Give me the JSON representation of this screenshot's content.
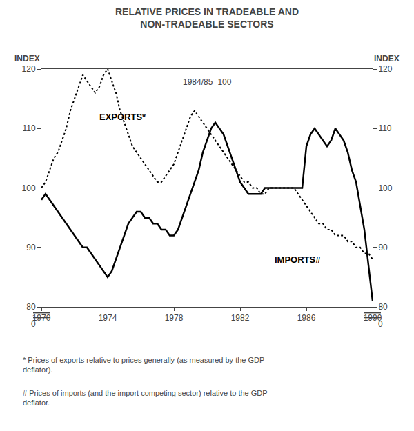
{
  "chart_data": {
    "type": "line",
    "title": "RELATIVE PRICES IN TRADEABLE AND\nNON-TRADEABLE SECTORS",
    "subtitle": "1984/85=100",
    "ylabel": "INDEX",
    "y2label": "INDEX",
    "x": [
      1970.0,
      1970.25,
      1970.5,
      1970.75,
      1971.0,
      1971.25,
      1971.5,
      1971.75,
      1972.0,
      1972.25,
      1972.5,
      1972.75,
      1973.0,
      1973.25,
      1973.5,
      1973.75,
      1974.0,
      1974.25,
      1974.5,
      1974.75,
      1975.0,
      1975.25,
      1975.5,
      1975.75,
      1976.0,
      1976.25,
      1976.5,
      1976.75,
      1977.0,
      1977.25,
      1977.5,
      1977.75,
      1978.0,
      1978.25,
      1978.5,
      1978.75,
      1979.0,
      1979.25,
      1979.5,
      1979.75,
      1980.0,
      1980.25,
      1980.5,
      1980.75,
      1981.0,
      1981.25,
      1981.5,
      1981.75,
      1982.0,
      1982.25,
      1982.5,
      1982.75,
      1983.0,
      1983.25,
      1983.5,
      1983.75,
      1984.0,
      1984.25,
      1984.5,
      1984.75,
      1985.0,
      1985.25,
      1985.5,
      1985.75,
      1986.0,
      1986.25,
      1986.5,
      1986.75,
      1987.0,
      1987.25,
      1987.5,
      1987.75,
      1988.0,
      1988.25,
      1988.5,
      1988.75,
      1989.0,
      1989.25,
      1989.5,
      1989.75,
      1990.0
    ],
    "series": [
      {
        "name": "EXPORTS*",
        "color": "#000000",
        "line_style": "dotted",
        "values": [
          100,
          101,
          103,
          105,
          106,
          108,
          110,
          113,
          115,
          117,
          119,
          118,
          117,
          116,
          117,
          119,
          120,
          118,
          116,
          113,
          111,
          109,
          107,
          106,
          105,
          104,
          103,
          102,
          101,
          101,
          102,
          103,
          104,
          106,
          108,
          110,
          112,
          113,
          112,
          111,
          110,
          109,
          108,
          107,
          106,
          105,
          104,
          103,
          102,
          101,
          101,
          100,
          100,
          99,
          99,
          100,
          100,
          100,
          100,
          100,
          100,
          100,
          99,
          98,
          97,
          96,
          95,
          94,
          94,
          93,
          93,
          92,
          92,
          92,
          91,
          91,
          90,
          90,
          89,
          89,
          88
        ]
      },
      {
        "name": "IMPORTS#",
        "color": "#000000",
        "line_style": "solid",
        "values": [
          98,
          99,
          98,
          97,
          96,
          95,
          94,
          93,
          92,
          91,
          90,
          90,
          89,
          88,
          87,
          86,
          85,
          86,
          88,
          90,
          92,
          94,
          95,
          96,
          96,
          95,
          95,
          94,
          94,
          93,
          93,
          92,
          92,
          93,
          95,
          97,
          99,
          101,
          103,
          106,
          108,
          110,
          111,
          110,
          109,
          107,
          105,
          103,
          101,
          100,
          99,
          99,
          99,
          99,
          100,
          100,
          100,
          100,
          100,
          100,
          100,
          100,
          100,
          100,
          107,
          109,
          110,
          109,
          108,
          107,
          108,
          110,
          109,
          108,
          106,
          103,
          101,
          97,
          93,
          87,
          81
        ]
      }
    ],
    "xlim": [
      1970,
      1990
    ],
    "xticks": [
      1970,
      1974,
      1978,
      1982,
      1986,
      1990
    ],
    "ylim": [
      80,
      120
    ],
    "yticks": [
      80,
      90,
      100,
      110,
      120
    ],
    "y2lim": [
      80,
      120
    ],
    "y2ticks": [
      80,
      90,
      100,
      110,
      120
    ],
    "grid": false,
    "annotations": [
      {
        "text": "0",
        "axis": "y"
      },
      {
        "text": "0",
        "axis": "y2"
      }
    ],
    "footnotes": [
      "* Prices of exports relative to prices generally (as measured by the GDP\ndeflator).",
      "# Prices of imports (and the import competing sector) relative to the GDP\ndeflator."
    ]
  }
}
